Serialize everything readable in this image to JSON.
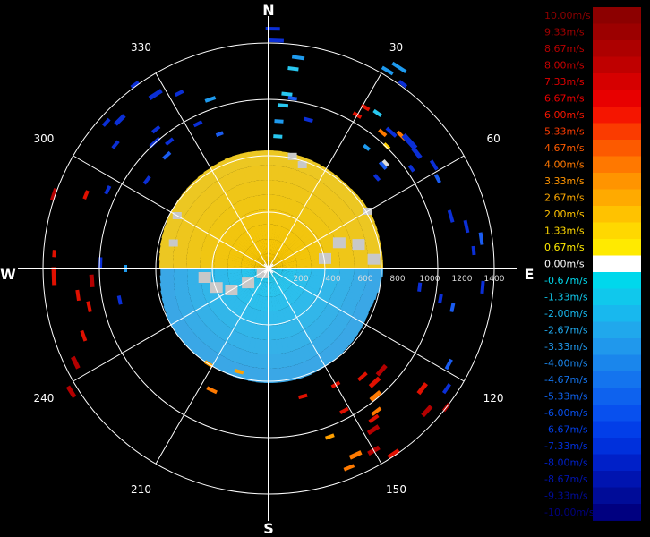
{
  "chart_data": {
    "type": "polar-radial-velocity",
    "title": "",
    "compass": [
      "N",
      "E",
      "S",
      "W"
    ],
    "angle_labels": [
      "30",
      "60",
      "120",
      "150",
      "210",
      "240",
      "300",
      "330"
    ],
    "range_ticks": [
      "200",
      "400",
      "600",
      "800",
      "1000",
      "1200",
      "1400"
    ],
    "range_max": 1400,
    "grid": true,
    "legend": {
      "placement": "right",
      "unit": "m/s",
      "labels": [
        "10.00m/s",
        "9.33m/s",
        "8.67m/s",
        "8.00m/s",
        "7.33m/s",
        "6.67m/s",
        "6.00m/s",
        "5.33m/s",
        "4.67m/s",
        "4.00m/s",
        "3.33m/s",
        "2.67m/s",
        "2.00m/s",
        "1.33m/s",
        "0.67m/s",
        "0.00m/s",
        "-0.67m/s",
        "-1.33m/s",
        "-2.00m/s",
        "-2.67m/s",
        "-3.33m/s",
        "-4.00m/s",
        "-4.67m/s",
        "-5.33m/s",
        "-6.00m/s",
        "-6.67m/s",
        "-7.33m/s",
        "-8.00m/s",
        "-8.67m/s",
        "-9.33m/s",
        "-10.00m/s"
      ],
      "colors": [
        "#8c0000",
        "#9c0000",
        "#ad0000",
        "#bf0000",
        "#d60000",
        "#e80000",
        "#f51500",
        "#fa3b00",
        "#fc5a00",
        "#ff7800",
        "#ff9400",
        "#ffaa00",
        "#ffc200",
        "#ffd800",
        "#ffea00",
        "#ffffff",
        "#00d8ec",
        "#10c8ec",
        "#18b8ee",
        "#20a8ec",
        "#2098ec",
        "#1a86ec",
        "#1474ee",
        "#0e62ee",
        "#0850ee",
        "#023ee8",
        "#0030dc",
        "#0020c8",
        "#0014b0",
        "#000c98",
        "#000080"
      ],
      "label_colors": [
        "#8c0000",
        "#a00000",
        "#b40000",
        "#c80000",
        "#dc0000",
        "#ee0000",
        "#f51500",
        "#fa3b00",
        "#fc5a00",
        "#ff7800",
        "#ff9400",
        "#ffaa00",
        "#ffc200",
        "#ffd800",
        "#ffea00",
        "#ffffff",
        "#00d8ec",
        "#10c8ec",
        "#18b8ee",
        "#20a8ec",
        "#2098ec",
        "#1a86ec",
        "#1474ee",
        "#0e62ee",
        "#0850ee",
        "#023ee8",
        "#0030dc",
        "#0020c8",
        "#0014b0",
        "#000c98",
        "#000080"
      ]
    }
  }
}
